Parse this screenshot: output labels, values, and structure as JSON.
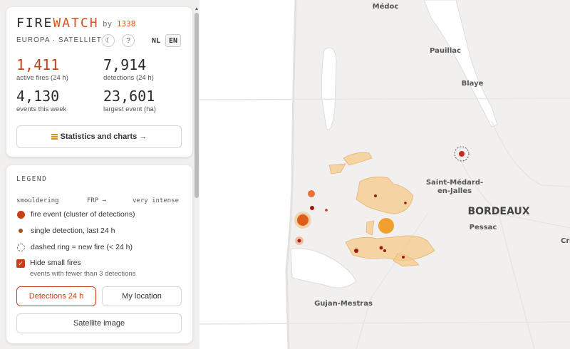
{
  "header": {
    "brand_fire": "FIRE",
    "brand_watch": "WATCH",
    "by_prefix": "by",
    "by_number": "1338",
    "subtitle": "EUROPA · SATELLIET",
    "theme_button": "☾",
    "help_button": "?",
    "lang_nl": "NL",
    "lang_en": "EN"
  },
  "stats": {
    "active_fires": {
      "value": "1,411",
      "label": "active fires (24 h)"
    },
    "detections": {
      "value": "7,914",
      "label": "detections (24 h)"
    },
    "events_week": {
      "value": "4,130",
      "label": "events this week"
    },
    "largest_event": {
      "value": "23,601",
      "label": "largest event (ha)"
    }
  },
  "stats_button": {
    "icon": "bar-chart-icon",
    "label": "Statistics and charts →"
  },
  "legend": {
    "title": "LEGEND",
    "scale_left": "smouldering",
    "scale_mid": "FRP →",
    "scale_right": "very intense",
    "items": [
      "fire event (cluster of detections)",
      "single detection, last 24 h",
      "dashed ring = new fire (< 24 h)"
    ],
    "hide_small": {
      "checked": true,
      "label": "Hide small fires",
      "note": "events with fewer than 3 detections"
    },
    "buttons": {
      "detections": "Detections 24 h",
      "location": "My location",
      "satellite": "Satellite image"
    }
  },
  "map_labels": {
    "medoc": "Médoc",
    "pauillac": "Pauillac",
    "blaye": "Blaye",
    "saint_medard_1": "Saint-Médard-",
    "saint_medard_2": "en-Jalles",
    "bordeaux": "BORDEAUX",
    "pessac": "Pessac",
    "gujan": "Gujan-Mestras",
    "cre": "Cre"
  },
  "colors": {
    "accent": "#c8401a",
    "brand_orange": "#d9531e",
    "burn_area": "#f5c98a",
    "fire_big": "#f0a030"
  }
}
